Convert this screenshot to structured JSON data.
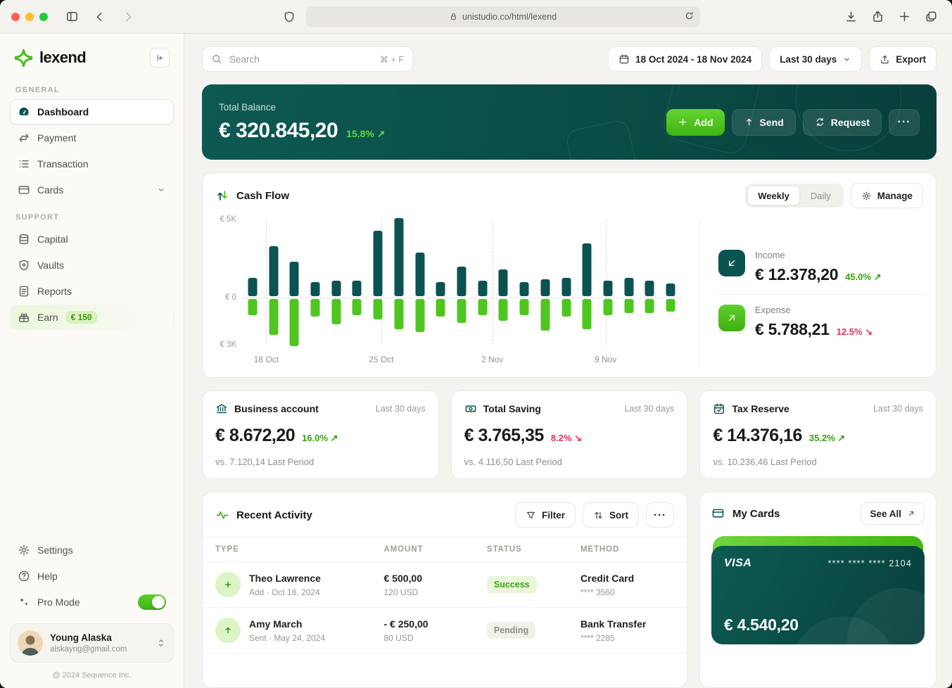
{
  "browser": {
    "url": "unistudio.co/html/lexend"
  },
  "sidebar": {
    "logo": "lexend",
    "sections": [
      {
        "label": "GENERAL",
        "items": [
          {
            "label": "Dashboard"
          },
          {
            "label": "Payment"
          },
          {
            "label": "Transaction"
          },
          {
            "label": "Cards"
          }
        ]
      },
      {
        "label": "SUPPORT",
        "items": [
          {
            "label": "Capital"
          },
          {
            "label": "Vaults"
          },
          {
            "label": "Reports"
          },
          {
            "label": "Earn",
            "badge": "€ 150"
          }
        ]
      }
    ],
    "footer_items": [
      {
        "label": "Settings"
      },
      {
        "label": "Help"
      },
      {
        "label": "Pro Mode"
      }
    ],
    "user": {
      "name": "Young Alaska",
      "email": "alskayng@gmail.com"
    },
    "copyright": "@ 2024 Sequence Inc."
  },
  "topbar": {
    "search": {
      "placeholder": "Search",
      "shortcut": "⌘ + F"
    },
    "date_range": "18 Oct 2024 - 18 Nov 2024",
    "period": "Last 30 days",
    "export_label": "Export"
  },
  "balance": {
    "label": "Total Balance",
    "value": "€ 320.845,20",
    "change": "15.8%",
    "arrow": "↗",
    "actions": {
      "add": "Add",
      "send": "Send",
      "request": "Request",
      "more": "···"
    }
  },
  "cashflow": {
    "title": "Cash Flow",
    "tabs": {
      "weekly": "Weekly",
      "daily": "Daily"
    },
    "manage": "Manage",
    "income": {
      "label": "Income",
      "value": "€ 12.378,20",
      "change": "45.0%",
      "arrow": "↗"
    },
    "expense": {
      "label": "Expense",
      "value": "€ 5.788,21",
      "change": "12.5%",
      "arrow": "↘"
    }
  },
  "chart_data": {
    "type": "bar",
    "title": "Cash Flow",
    "unit": "K EUR",
    "x_tick_labels": [
      "18 Oct",
      "25 Oct",
      "2 Nov",
      "9 Nov"
    ],
    "tick_positions": [
      0.055,
      0.317,
      0.57,
      0.828
    ],
    "y_tick_labels": [
      "€ 5K",
      "€ 0",
      "€ 3K"
    ],
    "ylim": [
      -3,
      5
    ],
    "grid": "dashed-vertical",
    "legend": "none",
    "series": [
      {
        "name": "Income",
        "color": "#0b5351",
        "values": [
          1.2,
          3.2,
          2.2,
          0.9,
          1.0,
          1.0,
          4.2,
          5.0,
          2.8,
          0.9,
          1.9,
          1.0,
          1.7,
          0.9,
          1.1,
          1.2,
          3.4,
          1.0,
          1.2,
          1.0,
          0.8
        ]
      },
      {
        "name": "Expense",
        "color": "#4fc620",
        "values": [
          -1.0,
          -2.3,
          -3.0,
          -1.1,
          -1.6,
          -1.0,
          -1.3,
          -1.9,
          -2.1,
          -1.1,
          -1.5,
          -1.0,
          -1.4,
          -1.0,
          -2.0,
          -1.1,
          -1.9,
          -1.0,
          -0.9,
          -0.9,
          -0.8
        ]
      }
    ]
  },
  "stats": [
    {
      "title": "Business account",
      "period": "Last 30 days",
      "value": "€ 8.672,20",
      "change": "16.0%",
      "arrow": "↗",
      "vs": "vs. 7.120,14 Last Period"
    },
    {
      "title": "Total Saving",
      "period": "Last 30 days",
      "value": "€ 3.765,35",
      "change": "8.2%",
      "arrow": "↘",
      "vs": "vs. 4.116,50 Last Period"
    },
    {
      "title": "Tax Reserve",
      "period": "Last 30 days",
      "value": "€ 14.376,16",
      "change": "35.2%",
      "arrow": "↗",
      "vs": "vs. 10.236,46 Last Period"
    }
  ],
  "activity": {
    "title": "Recent Activity",
    "filter_label": "Filter",
    "sort_label": "Sort",
    "more": "···",
    "headers": [
      "TYPE",
      "AMOUNT",
      "STATUS",
      "METHOD"
    ],
    "rows": [
      {
        "name": "Theo Lawrence",
        "detail": "Add  ·  Oct 18, 2024",
        "amount": "€ 500,00",
        "amount_sub": "120 USD",
        "status": "Success",
        "method": "Credit Card",
        "method_sub": "**** 3560"
      },
      {
        "name": "Amy March",
        "detail": "Sent  ·  May 24, 2024",
        "amount": "- € 250,00",
        "amount_sub": "80 USD",
        "status": "Pending",
        "method": "Bank Transfer",
        "method_sub": "**** 2285"
      }
    ]
  },
  "my_cards": {
    "title": "My Cards",
    "see_all": "See All",
    "card": {
      "brand": "VISA",
      "number": "**** **** **** 2104",
      "balance": "€ 4.540,20"
    }
  },
  "colors": {
    "teal": "#0b5351",
    "green": "#4fc620",
    "success_text": "#35a30f",
    "danger_text": "#e8305a"
  }
}
